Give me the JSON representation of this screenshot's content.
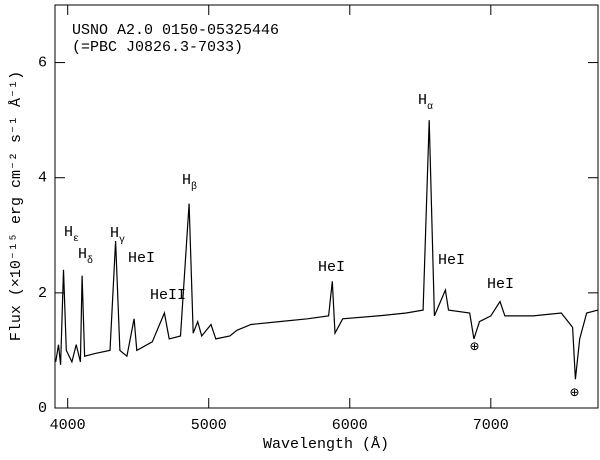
{
  "chart_data": {
    "type": "line",
    "title": [
      "USNO A2.0 0150-05325446",
      "(=PBC J0826.3-7033)"
    ],
    "x_label": "Wavelength (Å)",
    "y_label": "Flux (×10⁻¹⁵ erg cm⁻² s⁻¹ Å⁻¹)",
    "color": "#000000",
    "x": [
      3915,
      3935,
      3950,
      3970,
      3990,
      4030,
      4060,
      4090,
      4102,
      4120,
      4200,
      4300,
      4340,
      4370,
      4420,
      4471,
      4490,
      4600,
      4686,
      4720,
      4800,
      4861,
      4890,
      4922,
      4950,
      5016,
      5050,
      5150,
      5200,
      5300,
      5500,
      5700,
      5850,
      5876,
      5895,
      5950,
      6200,
      6400,
      6520,
      6563,
      6600,
      6678,
      6700,
      6850,
      6880,
      6920,
      7000,
      7065,
      7100,
      7300,
      7500,
      7580,
      7600,
      7630,
      7680,
      7760
    ],
    "values": [
      0.8,
      1.1,
      0.75,
      2.4,
      1.0,
      0.8,
      1.1,
      0.8,
      2.3,
      0.9,
      0.95,
      1.0,
      2.9,
      1.0,
      0.9,
      1.55,
      1.0,
      1.15,
      1.65,
      1.2,
      1.25,
      3.55,
      1.3,
      1.5,
      1.25,
      1.45,
      1.2,
      1.25,
      1.35,
      1.45,
      1.5,
      1.55,
      1.6,
      2.2,
      1.3,
      1.55,
      1.6,
      1.65,
      1.7,
      5.0,
      1.6,
      2.05,
      1.7,
      1.65,
      1.2,
      1.5,
      1.6,
      1.85,
      1.6,
      1.6,
      1.65,
      1.4,
      0.5,
      1.2,
      1.65,
      1.7
    ],
    "xlim": [
      3910,
      7760
    ],
    "ylim": [
      0,
      7
    ],
    "xticks": [
      4000,
      5000,
      6000,
      7000
    ],
    "yticks": [
      0,
      2,
      4,
      6
    ],
    "annotations": [
      {
        "text": "H",
        "sub": "ε"
      },
      {
        "text": "H",
        "sub": "δ"
      },
      {
        "text": "H",
        "sub": "γ"
      },
      {
        "text": "HeI"
      },
      {
        "text": "HeII"
      },
      {
        "text": "H",
        "sub": "β"
      },
      {
        "text": "HeI"
      },
      {
        "text": "H",
        "sub": "α"
      },
      {
        "text": "HeI"
      },
      {
        "text": "HeI"
      },
      {
        "text": "⊕"
      },
      {
        "text": "⊕"
      }
    ]
  }
}
